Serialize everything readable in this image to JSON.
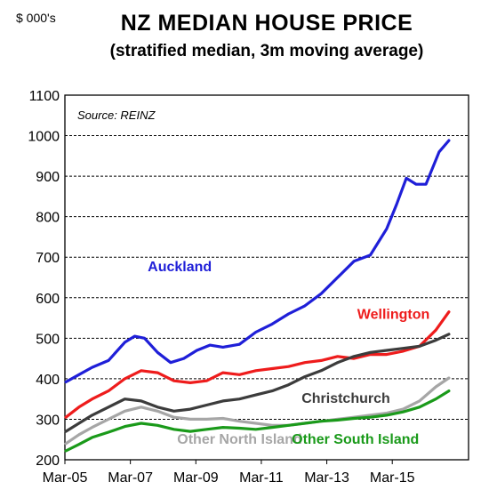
{
  "chart_data": {
    "type": "line",
    "title": "NZ MEDIAN HOUSE PRICE",
    "subtitle": "(stratified median, 3m moving average)",
    "ylabel": "$ 000's",
    "source": "Source:  REINZ",
    "ylim": [
      200,
      1100
    ],
    "yticks": [
      200,
      300,
      400,
      500,
      600,
      700,
      800,
      900,
      1000,
      1100
    ],
    "xlim": [
      2005.17,
      2017.5
    ],
    "xticks": [
      {
        "label": "Mar-05",
        "value": 2005.17
      },
      {
        "label": "Mar-07",
        "value": 2007.17
      },
      {
        "label": "Mar-09",
        "value": 2009.17
      },
      {
        "label": "Mar-11",
        "value": 2011.17
      },
      {
        "label": "Mar-13",
        "value": 2013.17
      },
      {
        "label": "Mar-15",
        "value": 2015.17
      }
    ],
    "grid": "horizontal-dashed",
    "series": [
      {
        "name": "Auckland",
        "color": "#1f1fd8",
        "x": [
          2005.2,
          2005.6,
          2006.0,
          2006.5,
          2007.0,
          2007.3,
          2007.6,
          2008.0,
          2008.4,
          2008.8,
          2009.2,
          2009.6,
          2010.0,
          2010.5,
          2011.0,
          2011.5,
          2012.0,
          2012.5,
          2013.0,
          2013.5,
          2014.0,
          2014.5,
          2015.0,
          2015.3,
          2015.6,
          2015.9,
          2016.2,
          2016.6,
          2016.9
        ],
        "values": [
          392,
          410,
          428,
          445,
          490,
          505,
          500,
          465,
          440,
          450,
          470,
          483,
          478,
          485,
          515,
          535,
          560,
          580,
          610,
          650,
          690,
          705,
          770,
          830,
          895,
          880,
          880,
          960,
          988
        ]
      },
      {
        "name": "Wellington",
        "color": "#ee1c1c",
        "x": [
          2005.2,
          2005.6,
          2006.0,
          2006.5,
          2007.0,
          2007.5,
          2008.0,
          2008.5,
          2009.0,
          2009.5,
          2010.0,
          2010.5,
          2011.0,
          2011.5,
          2012.0,
          2012.5,
          2013.0,
          2013.5,
          2014.0,
          2014.5,
          2015.0,
          2015.5,
          2016.0,
          2016.5,
          2016.9
        ],
        "values": [
          305,
          330,
          350,
          370,
          400,
          420,
          415,
          395,
          390,
          395,
          415,
          410,
          420,
          425,
          430,
          440,
          445,
          455,
          450,
          460,
          460,
          468,
          480,
          520,
          565
        ]
      },
      {
        "name": "Christchurch",
        "color": "#3c3c3c",
        "x": [
          2005.2,
          2005.6,
          2006.0,
          2006.5,
          2007.0,
          2007.5,
          2008.0,
          2008.5,
          2009.0,
          2009.5,
          2010.0,
          2010.5,
          2011.0,
          2011.5,
          2012.0,
          2012.5,
          2013.0,
          2013.5,
          2014.0,
          2014.5,
          2015.0,
          2015.5,
          2016.0,
          2016.5,
          2016.9
        ],
        "values": [
          270,
          290,
          310,
          330,
          350,
          345,
          330,
          320,
          325,
          335,
          345,
          350,
          360,
          370,
          385,
          405,
          420,
          440,
          455,
          465,
          470,
          475,
          480,
          495,
          510
        ]
      },
      {
        "name": "Other North Island",
        "color": "#a6a6a6",
        "x": [
          2005.2,
          2005.6,
          2006.0,
          2006.5,
          2007.0,
          2007.5,
          2008.0,
          2008.5,
          2009.0,
          2009.5,
          2010.0,
          2010.5,
          2011.0,
          2011.5,
          2012.0,
          2012.5,
          2013.0,
          2013.5,
          2014.0,
          2014.5,
          2015.0,
          2015.5,
          2016.0,
          2016.5,
          2016.9
        ],
        "values": [
          240,
          262,
          280,
          300,
          320,
          330,
          320,
          305,
          300,
          300,
          302,
          295,
          290,
          285,
          285,
          290,
          295,
          300,
          305,
          310,
          315,
          325,
          345,
          380,
          402
        ]
      },
      {
        "name": "Other South Island",
        "color": "#1a9a1a",
        "x": [
          2005.2,
          2005.6,
          2006.0,
          2006.5,
          2007.0,
          2007.5,
          2008.0,
          2008.5,
          2009.0,
          2009.5,
          2010.0,
          2010.5,
          2011.0,
          2011.5,
          2012.0,
          2012.5,
          2013.0,
          2013.5,
          2014.0,
          2014.5,
          2015.0,
          2015.5,
          2016.0,
          2016.5,
          2016.9
        ],
        "values": [
          222,
          238,
          255,
          268,
          282,
          290,
          285,
          275,
          270,
          275,
          280,
          278,
          275,
          280,
          285,
          290,
          295,
          298,
          302,
          305,
          310,
          318,
          330,
          350,
          370
        ]
      }
    ],
    "annotations": [
      {
        "text": "Auckland",
        "color": "#1f1fd8",
        "x": 2007.7,
        "y": 665
      },
      {
        "text": "Wellington",
        "color": "#ee1c1c",
        "x": 2014.1,
        "y": 548
      },
      {
        "text": "Christchurch",
        "color": "#3c3c3c",
        "x": 2012.4,
        "y": 341
      },
      {
        "text": "Other North Island",
        "color": "#a6a6a6",
        "x": 2008.6,
        "y": 240
      },
      {
        "text": "Other South Island",
        "color": "#1a9a1a",
        "x": 2012.1,
        "y": 240
      }
    ]
  }
}
